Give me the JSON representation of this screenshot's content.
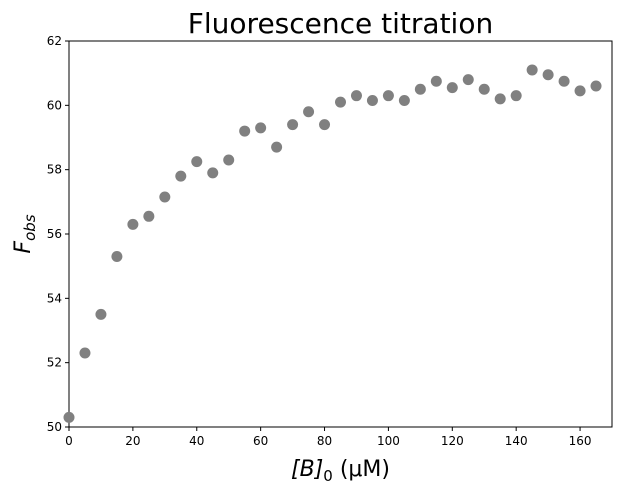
{
  "chart_data": {
    "type": "scatter",
    "title": "Fluorescence titration",
    "xlabel": {
      "main": "[B]",
      "sub": "0",
      "rest": " (μM)"
    },
    "ylabel": {
      "main": "F",
      "sub": "obs"
    },
    "xlim": [
      0,
      170
    ],
    "ylim": [
      50,
      62
    ],
    "xticks": [
      0,
      20,
      40,
      60,
      80,
      100,
      120,
      140,
      160
    ],
    "yticks": [
      50,
      52,
      54,
      56,
      58,
      60,
      62
    ],
    "grid": false,
    "marker_color": "#808080",
    "x": [
      0,
      5,
      10,
      15,
      20,
      25,
      30,
      35,
      40,
      45,
      50,
      55,
      60,
      65,
      70,
      75,
      80,
      85,
      90,
      95,
      100,
      105,
      110,
      115,
      120,
      125,
      130,
      135,
      140,
      145,
      150,
      155,
      160,
      165
    ],
    "y": [
      50.3,
      52.3,
      53.5,
      55.3,
      56.3,
      56.55,
      57.15,
      57.8,
      58.25,
      57.9,
      58.3,
      59.2,
      59.3,
      58.7,
      59.4,
      59.8,
      59.4,
      60.1,
      60.3,
      60.15,
      60.3,
      60.15,
      60.5,
      60.75,
      60.55,
      60.8,
      60.5,
      60.2,
      60.3,
      61.1,
      60.95,
      60.75,
      60.45,
      60.6
    ]
  }
}
